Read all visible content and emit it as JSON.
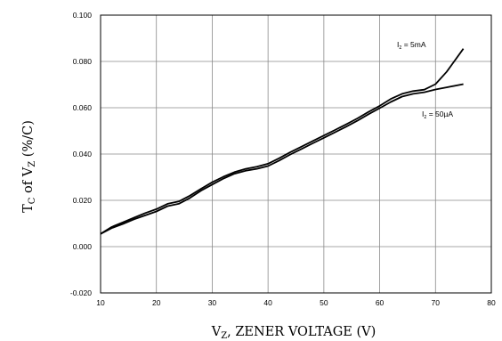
{
  "chart_data": {
    "type": "line",
    "xlabel": {
      "main": "V",
      "sub": "Z",
      "rest": ",  ZENER VOLTAGE (V)"
    },
    "ylabel": {
      "t": "T",
      "t_sub": "C",
      "mid": " of V",
      "v_sub": "Z",
      "rest": " (%/C)"
    },
    "xlim": [
      10,
      80
    ],
    "ylim": [
      -0.02,
      0.1
    ],
    "x_ticks": [
      10,
      20,
      30,
      40,
      50,
      60,
      70,
      80
    ],
    "x_tick_labels": [
      "10",
      "20",
      "30",
      "40",
      "50",
      "60",
      "70",
      "80"
    ],
    "y_ticks": [
      -0.02,
      0.0,
      0.02,
      0.04,
      0.06,
      0.08,
      0.1
    ],
    "y_tick_labels": [
      "-0.020",
      "0.000",
      "0.020",
      "0.040",
      "0.060",
      "0.080",
      "0.100"
    ],
    "grid": true,
    "series": [
      {
        "name": {
          "i": "I",
          "sub": "z",
          "rest": " = 5mA"
        },
        "color": "#000000",
        "x": [
          10,
          12,
          14,
          16,
          18,
          20,
          22,
          24,
          26,
          28,
          30,
          32,
          34,
          36,
          38,
          40,
          42,
          44,
          46,
          48,
          50,
          52,
          54,
          56,
          58,
          60,
          62,
          64,
          66,
          68,
          70,
          72,
          75
        ],
        "y": [
          0.0055,
          0.0085,
          0.0105,
          0.0125,
          0.0145,
          0.0162,
          0.0185,
          0.0195,
          0.022,
          0.025,
          0.0278,
          0.0302,
          0.0322,
          0.0336,
          0.0345,
          0.0358,
          0.0382,
          0.0408,
          0.0432,
          0.0456,
          0.048,
          0.0504,
          0.0528,
          0.0554,
          0.0582,
          0.0608,
          0.0638,
          0.066,
          0.0672,
          0.0678,
          0.0702,
          0.0755,
          0.0855
        ]
      },
      {
        "name": {
          "i": "I",
          "sub": "z",
          "rest": " = 50µA"
        },
        "color": "#000000",
        "x": [
          10,
          12,
          14,
          16,
          18,
          20,
          22,
          24,
          26,
          28,
          30,
          32,
          34,
          36,
          38,
          40,
          42,
          44,
          46,
          48,
          50,
          52,
          54,
          56,
          58,
          60,
          62,
          64,
          66,
          68,
          70,
          72,
          75
        ],
        "y": [
          0.0055,
          0.008,
          0.0098,
          0.0118,
          0.0135,
          0.0152,
          0.0175,
          0.0185,
          0.021,
          0.0242,
          0.0268,
          0.0294,
          0.0315,
          0.0328,
          0.0336,
          0.0348,
          0.0372,
          0.0398,
          0.0422,
          0.0446,
          0.047,
          0.0494,
          0.0518,
          0.0544,
          0.0572,
          0.0598,
          0.0625,
          0.0648,
          0.066,
          0.0667,
          0.0679,
          0.0688,
          0.0702
        ]
      }
    ]
  }
}
